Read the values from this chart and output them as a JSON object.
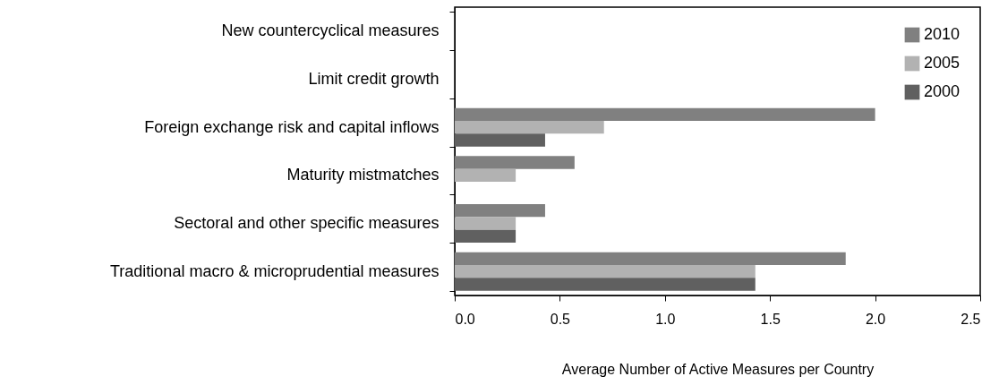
{
  "chart_data": {
    "type": "bar",
    "orientation": "horizontal",
    "xlabel": "Average Number of Active Measures per Country",
    "categories": [
      "New countercyclical measures",
      "Limit credit growth",
      "Foreign exchange risk and capital inflows",
      "Maturity mistmatches",
      "Sectoral and other specific measures",
      "Traditional macro & microprudential measures"
    ],
    "series": [
      {
        "name": "2010",
        "color": "#808080",
        "values": [
          0,
          0,
          2.0,
          0.57,
          0.43,
          1.86
        ]
      },
      {
        "name": "2005",
        "color": "#b2b2b2",
        "values": [
          0,
          0,
          0.71,
          0.29,
          0.29,
          1.43
        ]
      },
      {
        "name": "2000",
        "color": "#606060",
        "values": [
          0,
          0,
          0.43,
          0,
          0.29,
          1.43
        ]
      }
    ],
    "xlim": [
      0,
      2.5
    ],
    "xticks": [
      {
        "value": 0,
        "label": "0.0"
      },
      0.5,
      {
        "value": 1,
        "label": "1.0"
      },
      1.5,
      {
        "value": 2,
        "label": "2.0"
      },
      2.5
    ],
    "grid": false,
    "legend": "top right"
  }
}
